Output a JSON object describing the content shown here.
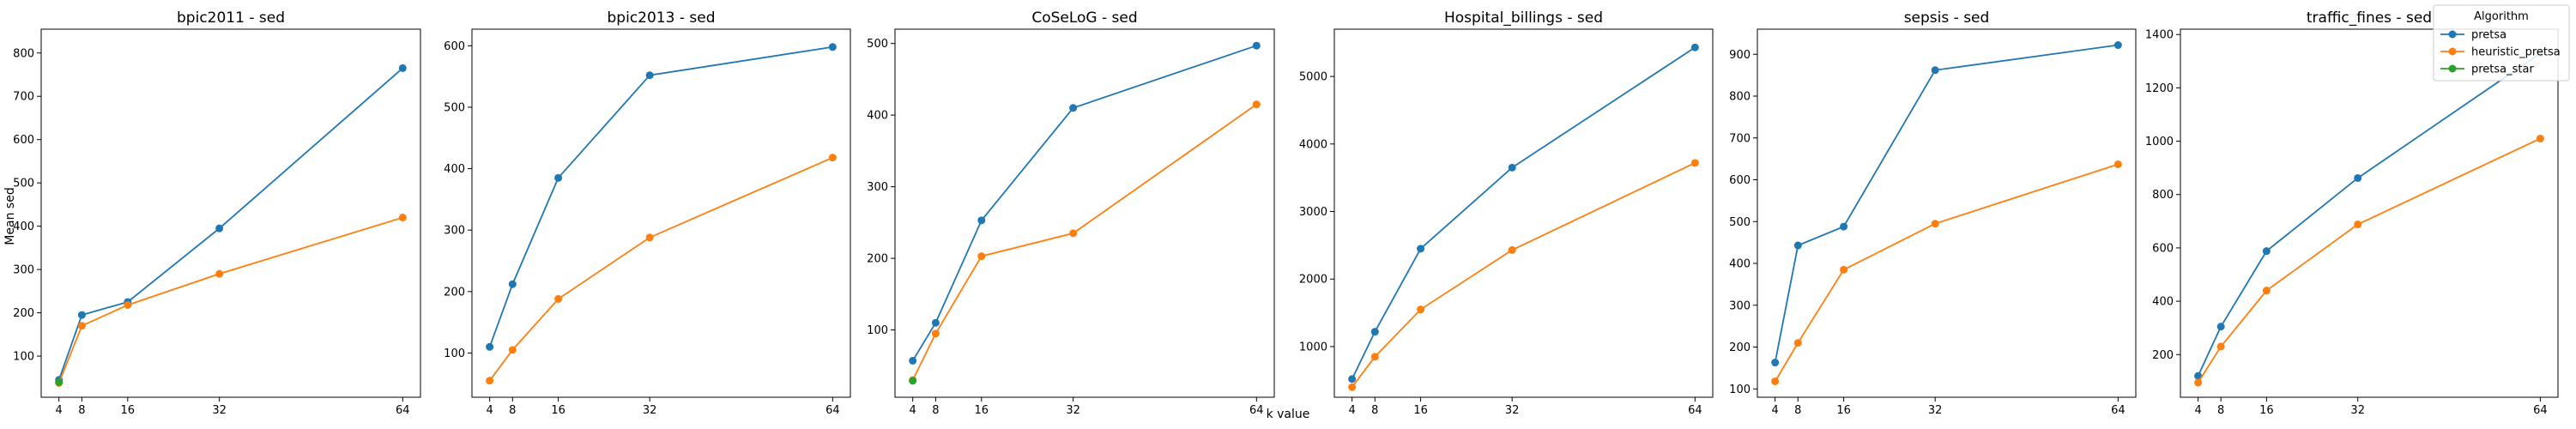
{
  "figure": {
    "xlabel": "k value",
    "ylabel": "Mean sed"
  },
  "legend": {
    "title": "Algorithm",
    "placement": "top-right",
    "entries": [
      {
        "name": "pretsa",
        "color": "#1f77b4"
      },
      {
        "name": "heuristic_pretsa",
        "color": "#ff7f0e"
      },
      {
        "name": "pretsa_star",
        "color": "#2ca02c"
      }
    ]
  },
  "chart_data": [
    {
      "type": "line",
      "title": "bpic2011 - sed",
      "x": [
        4,
        8,
        16,
        32,
        64
      ],
      "xticks": [
        "4",
        "8",
        "16",
        "32",
        "64"
      ],
      "ylim": [
        5,
        855
      ],
      "yticks": [
        100,
        200,
        300,
        400,
        500,
        600,
        700,
        800
      ],
      "series": [
        {
          "name": "pretsa",
          "color": "#1f77b4",
          "x": [
            4,
            8,
            16,
            32,
            64
          ],
          "y": [
            45,
            195,
            225,
            395,
            765
          ]
        },
        {
          "name": "heuristic_pretsa",
          "color": "#ff7f0e",
          "x": [
            4,
            8,
            16,
            32,
            64
          ],
          "y": [
            38,
            170,
            218,
            290,
            420
          ]
        },
        {
          "name": "pretsa_star",
          "color": "#2ca02c",
          "x": [
            4
          ],
          "y": [
            40
          ]
        }
      ]
    },
    {
      "type": "line",
      "title": "bpic2013 - sed",
      "x": [
        4,
        8,
        16,
        32,
        64
      ],
      "xticks": [
        "4",
        "8",
        "16",
        "32",
        "64"
      ],
      "ylim": [
        28,
        627
      ],
      "yticks": [
        100,
        200,
        300,
        400,
        500,
        600
      ],
      "series": [
        {
          "name": "pretsa",
          "color": "#1f77b4",
          "x": [
            4,
            8,
            16,
            32,
            64
          ],
          "y": [
            110,
            212,
            385,
            552,
            598
          ]
        },
        {
          "name": "heuristic_pretsa",
          "color": "#ff7f0e",
          "x": [
            4,
            8,
            16,
            32,
            64
          ],
          "y": [
            55,
            105,
            188,
            288,
            418
          ]
        }
      ]
    },
    {
      "type": "line",
      "title": "CoSeLoG - sed",
      "x": [
        4,
        8,
        16,
        32,
        64
      ],
      "xticks": [
        "4",
        "8",
        "16",
        "32",
        "64"
      ],
      "ylim": [
        6,
        520
      ],
      "yticks": [
        100,
        200,
        300,
        400,
        500
      ],
      "series": [
        {
          "name": "pretsa",
          "color": "#1f77b4",
          "x": [
            4,
            8,
            16,
            32,
            64
          ],
          "y": [
            57,
            110,
            253,
            410,
            497
          ]
        },
        {
          "name": "heuristic_pretsa",
          "color": "#ff7f0e",
          "x": [
            4,
            8,
            16,
            32,
            64
          ],
          "y": [
            30,
            95,
            203,
            235,
            415
          ]
        },
        {
          "name": "pretsa_star",
          "color": "#2ca02c",
          "x": [
            4
          ],
          "y": [
            29
          ]
        }
      ]
    },
    {
      "type": "line",
      "title": "Hospital_billings - sed",
      "x": [
        4,
        8,
        16,
        32,
        64
      ],
      "xticks": [
        "4",
        "8",
        "16",
        "32",
        "64"
      ],
      "ylim": [
        250,
        5700
      ],
      "yticks": [
        1000,
        2000,
        3000,
        4000,
        5000
      ],
      "series": [
        {
          "name": "pretsa",
          "color": "#1f77b4",
          "x": [
            4,
            8,
            16,
            32,
            64
          ],
          "y": [
            520,
            1220,
            2450,
            3650,
            5430
          ]
        },
        {
          "name": "heuristic_pretsa",
          "color": "#ff7f0e",
          "x": [
            4,
            8,
            16,
            32,
            64
          ],
          "y": [
            400,
            850,
            1550,
            2430,
            3720
          ]
        }
      ]
    },
    {
      "type": "line",
      "title": "sepsis - sed",
      "x": [
        4,
        8,
        16,
        32,
        64
      ],
      "xticks": [
        "4",
        "8",
        "16",
        "32",
        "64"
      ],
      "ylim": [
        80,
        960
      ],
      "yticks": [
        100,
        200,
        300,
        400,
        500,
        600,
        700,
        800,
        900
      ],
      "series": [
        {
          "name": "pretsa",
          "color": "#1f77b4",
          "x": [
            4,
            8,
            16,
            32,
            64
          ],
          "y": [
            163,
            443,
            488,
            862,
            922
          ]
        },
        {
          "name": "heuristic_pretsa",
          "color": "#ff7f0e",
          "x": [
            4,
            8,
            16,
            32,
            64
          ],
          "y": [
            118,
            210,
            385,
            495,
            637
          ]
        }
      ]
    },
    {
      "type": "line",
      "title": "traffic_fines - sed",
      "x": [
        4,
        8,
        16,
        32,
        64
      ],
      "xticks": [
        "4",
        "8",
        "16",
        "32",
        "64"
      ],
      "ylim": [
        40,
        1420
      ],
      "yticks": [
        200,
        400,
        600,
        800,
        1000,
        1200,
        1400
      ],
      "series": [
        {
          "name": "pretsa",
          "color": "#1f77b4",
          "x": [
            4,
            8,
            16,
            32,
            64
          ],
          "y": [
            120,
            305,
            588,
            862,
            1330
          ]
        },
        {
          "name": "heuristic_pretsa",
          "color": "#ff7f0e",
          "x": [
            4,
            8,
            16,
            32,
            64
          ],
          "y": [
            95,
            230,
            440,
            688,
            1010
          ]
        }
      ]
    }
  ]
}
